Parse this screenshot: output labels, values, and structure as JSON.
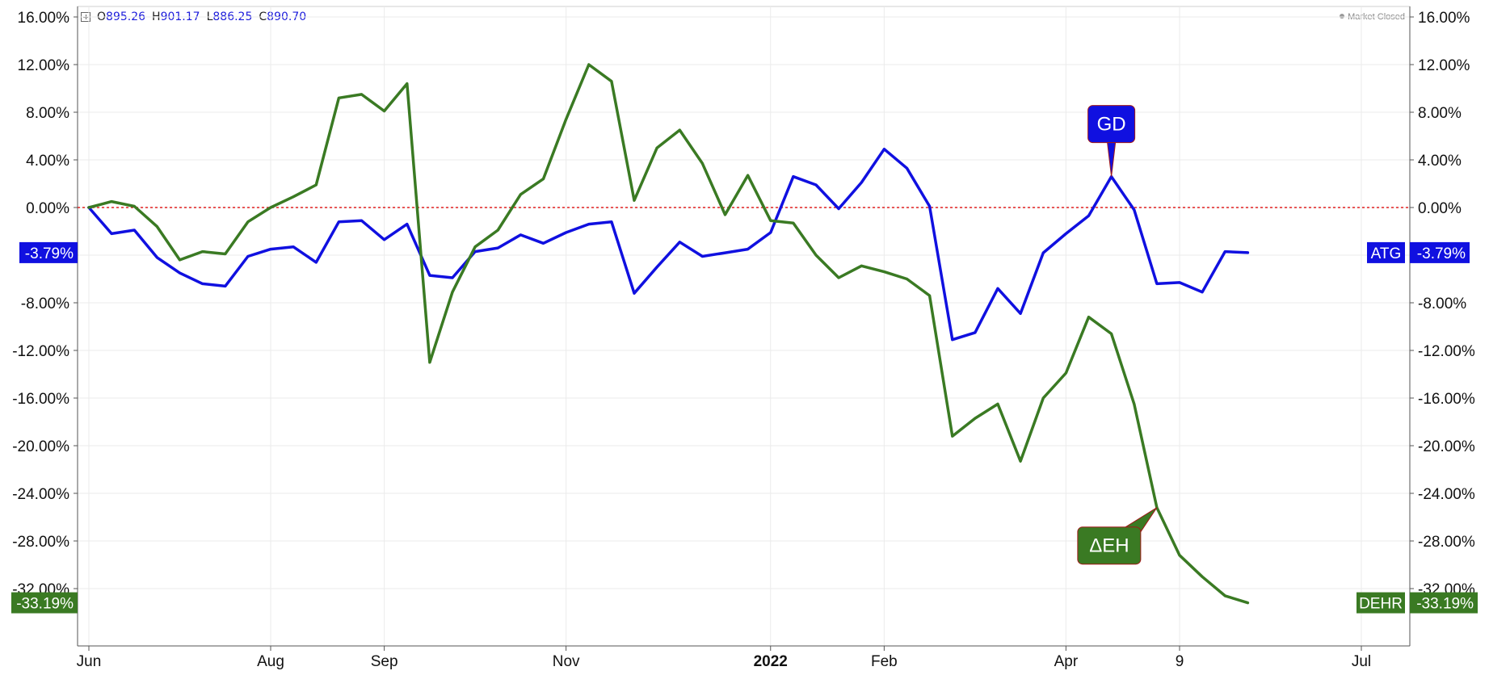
{
  "ohlc": {
    "o_label": "O",
    "o_value": "895.26",
    "h_label": "H",
    "h_value": "901.17",
    "l_label": "L",
    "l_value": "886.25",
    "c_label": "C",
    "c_value": "890.70"
  },
  "market_status": "Market Closed",
  "colors": {
    "gd": "#1010e0",
    "deh": "#3a7a23",
    "zero_line": "#e02020",
    "grid": "#ebebeb",
    "axis": "#555555",
    "text": "#111111"
  },
  "chart_data": {
    "type": "line",
    "y_unit": "%",
    "ylim": [
      -36,
      17
    ],
    "y_ticks": [
      "16.00%",
      "12.00%",
      "8.00%",
      "4.00%",
      "0.00%",
      "-4.00%",
      "-8.00%",
      "-12.00%",
      "-16.00%",
      "-20.00%",
      "-24.00%",
      "-28.00%",
      "-32.00%"
    ],
    "x_ticks": [
      {
        "label": "Jun",
        "x": 0,
        "bold": false
      },
      {
        "label": "Aug",
        "x": 8,
        "bold": false
      },
      {
        "label": "Sep",
        "x": 13,
        "bold": false
      },
      {
        "label": "Nov",
        "x": 21,
        "bold": false
      },
      {
        "label": "2022",
        "x": 30,
        "bold": true
      },
      {
        "label": "Feb",
        "x": 35,
        "bold": false
      },
      {
        "label": "Apr",
        "x": 43,
        "bold": false
      },
      {
        "label": "9",
        "x": 48,
        "bold": false
      },
      {
        "label": "Jul",
        "x": 56,
        "bold": false
      }
    ],
    "xlim": [
      -0.5,
      58
    ],
    "zero_line": 0,
    "series": [
      {
        "name": "GD",
        "symbol": "ATG",
        "last_value_label": "-3.79%",
        "color": "#1010e0",
        "values": [
          0,
          -2.2,
          -1.9,
          -4.2,
          -5.5,
          -6.4,
          -6.6,
          -4.1,
          -3.5,
          -3.3,
          -4.6,
          -1.2,
          -1.1,
          -2.7,
          -1.4,
          -5.7,
          -5.9,
          -3.7,
          -3.4,
          -2.3,
          -3.0,
          -2.1,
          -1.4,
          -1.2,
          -7.2,
          -5.0,
          -2.9,
          -4.1,
          -3.8,
          -3.5,
          -2.1,
          2.6,
          1.9,
          -0.1,
          2.1,
          4.9,
          3.3,
          0.1,
          -11.1,
          -10.5,
          -6.8,
          -8.9,
          -3.8,
          -2.2,
          -0.7,
          2.6,
          -0.2,
          -6.4,
          -6.3,
          -7.1,
          -3.7,
          -3.79
        ],
        "callout": {
          "text": "GD",
          "index": 45
        }
      },
      {
        "name": "ΔEH",
        "symbol": "DEHR",
        "last_value_label": "-33.19%",
        "color": "#3a7a23",
        "values": [
          0,
          0.5,
          0.1,
          -1.6,
          -4.4,
          -3.7,
          -3.9,
          -1.2,
          0.0,
          0.9,
          1.9,
          9.2,
          9.5,
          8.1,
          10.4,
          -13.0,
          -7.1,
          -3.3,
          -1.9,
          1.1,
          2.4,
          7.4,
          12.0,
          10.6,
          0.6,
          5.0,
          6.5,
          3.7,
          -0.6,
          2.7,
          -1.1,
          -1.3,
          -4.0,
          -5.9,
          -4.9,
          -5.4,
          -6.0,
          -7.4,
          -19.2,
          -17.7,
          -16.5,
          -21.3,
          -16.0,
          -13.9,
          -9.2,
          -10.6,
          -16.5,
          -25.2,
          -29.2,
          -31.0,
          -32.6,
          -33.19
        ],
        "callout": {
          "text": "ΔEH",
          "index": 47
        }
      }
    ]
  }
}
